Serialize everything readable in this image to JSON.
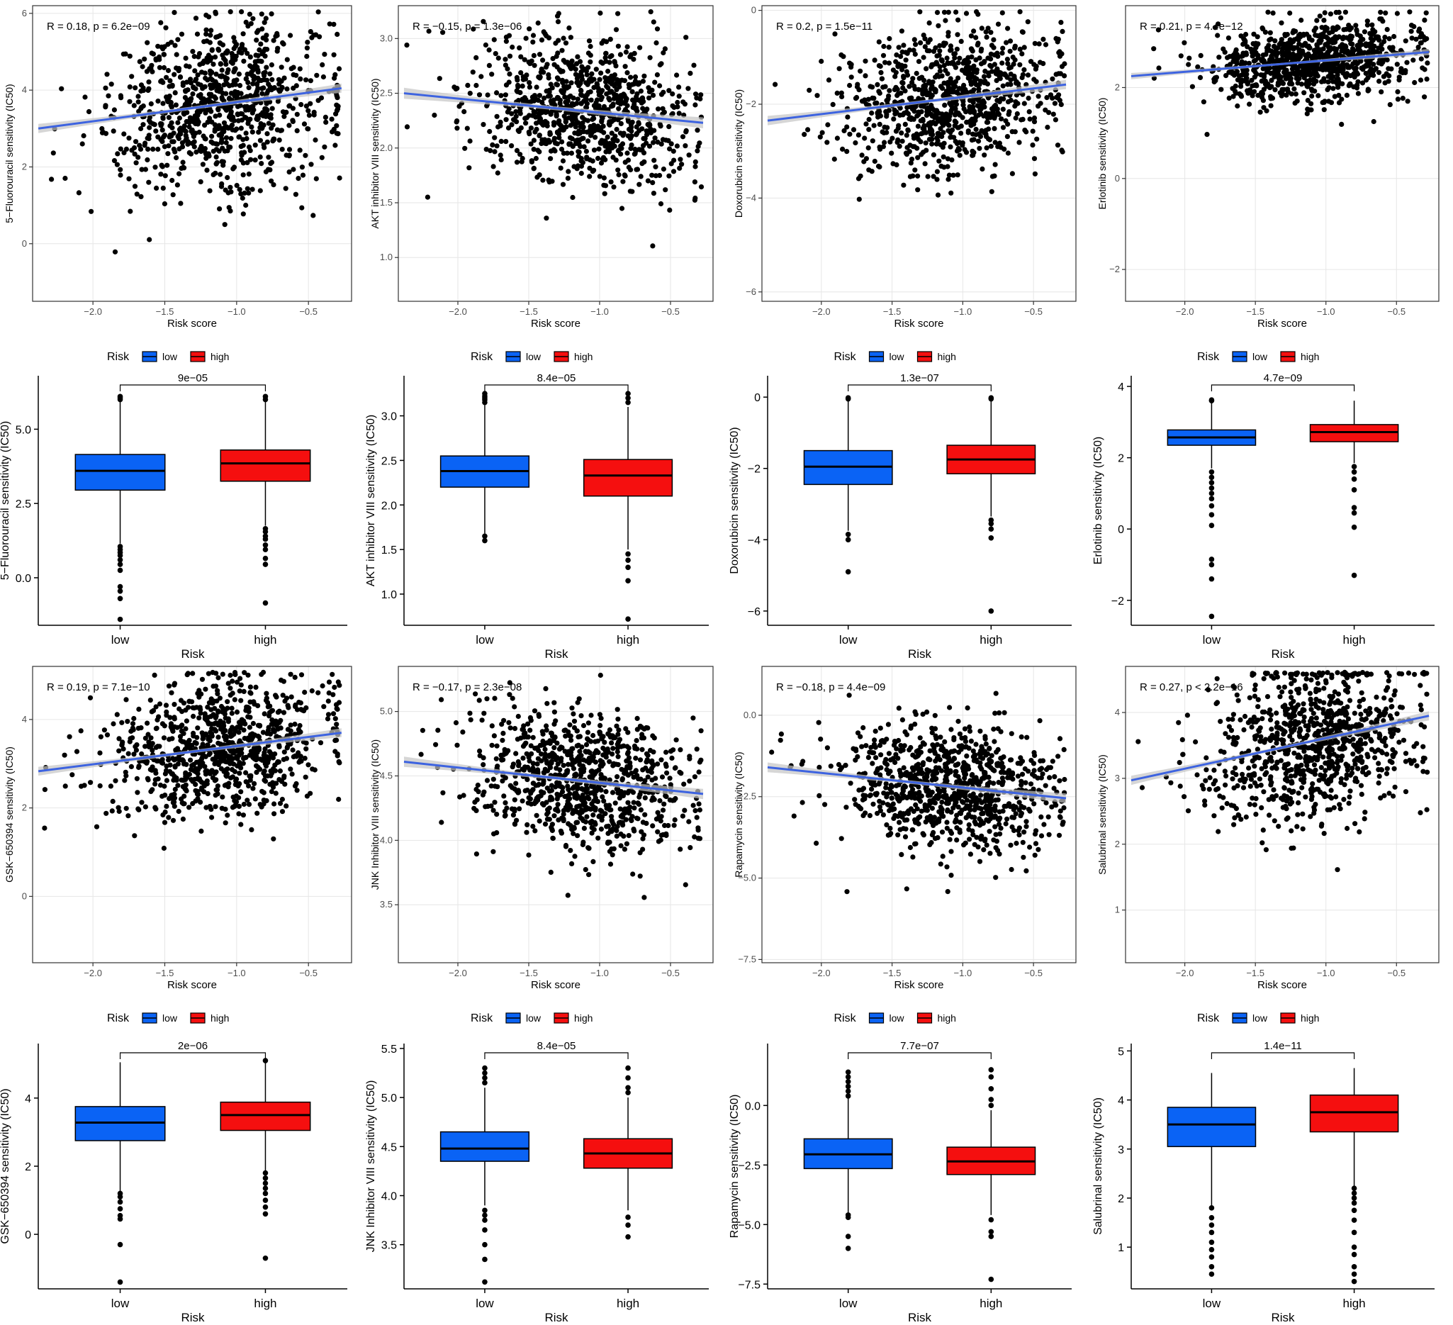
{
  "colors": {
    "low": "#0a63f5",
    "high": "#f50f0f",
    "fit_line": "#3d63e0",
    "ci_band": "#c4c4c4",
    "point": "#000000",
    "grid": "#e6e6e6"
  },
  "legend": {
    "title": "Risk",
    "items": [
      {
        "key": "low",
        "label": "low"
      },
      {
        "key": "high",
        "label": "high"
      }
    ]
  },
  "chart_data": [
    {
      "type": "scatter",
      "panel": "5-FU-scatter",
      "ylabel": "5−Fluorouracil sensitivity (IC50)",
      "xlabel": "Risk score",
      "annotation": "R = 0.18, p = 6.2e−09",
      "xlim": [
        -2.42,
        -0.2
      ],
      "ylim": [
        -1.5,
        6.2
      ],
      "xticks": [
        -2.0,
        -1.5,
        -1.0,
        -0.5
      ],
      "xtick_labels": [
        "−2.0",
        "−1.5",
        "−1.0",
        "−0.5"
      ],
      "yticks": [
        0,
        2,
        4,
        6
      ],
      "ytick_labels": [
        "0",
        "2",
        "4",
        "6"
      ],
      "fit": {
        "x": [
          -2.38,
          -0.27
        ],
        "y": [
          3.0,
          4.05
        ]
      },
      "ci": 0.12,
      "cloud": {
        "center_x": -1.1,
        "center_y": 3.6,
        "sd_y": 1.1,
        "n": 900
      }
    },
    {
      "type": "scatter",
      "panel": "AKT-scatter",
      "ylabel": "AKT inhibitor VIII sensitivity (IC50)",
      "xlabel": "Risk score",
      "annotation": "R = −0.15, p = 1.3e−06",
      "xlim": [
        -2.42,
        -0.2
      ],
      "ylim": [
        0.6,
        3.3
      ],
      "xticks": [
        -2.0,
        -1.5,
        -1.0,
        -0.5
      ],
      "xtick_labels": [
        "−2.0",
        "−1.5",
        "−1.0",
        "−0.5"
      ],
      "yticks": [
        1.0,
        1.5,
        2.0,
        2.5,
        3.0
      ],
      "ytick_labels": [
        "1.0",
        "1.5",
        "2.0",
        "2.5",
        "3.0"
      ],
      "fit": {
        "x": [
          -2.38,
          -0.27
        ],
        "y": [
          2.5,
          2.23
        ]
      },
      "ci": 0.05,
      "cloud": {
        "center_x": -1.1,
        "center_y": 2.37,
        "sd_y": 0.33,
        "n": 900
      }
    },
    {
      "type": "scatter",
      "panel": "Doxorubicin-scatter",
      "ylabel": "Doxorubicin sensitivity (IC50)",
      "xlabel": "Risk score",
      "annotation": "R = 0.2, p = 1.5e−11",
      "xlim": [
        -2.42,
        -0.2
      ],
      "ylim": [
        -6.2,
        0.1
      ],
      "xticks": [
        -2.0,
        -1.5,
        -1.0,
        -0.5
      ],
      "xtick_labels": [
        "−2.0",
        "−1.5",
        "−1.0",
        "−0.5"
      ],
      "yticks": [
        -6,
        -4,
        -2,
        0
      ],
      "ytick_labels": [
        "−6",
        "−4",
        "−2",
        "0"
      ],
      "fit": {
        "x": [
          -2.38,
          -0.27
        ],
        "y": [
          -2.35,
          -1.58
        ]
      },
      "ci": 0.1,
      "cloud": {
        "center_x": -1.1,
        "center_y": -1.9,
        "sd_y": 0.75,
        "n": 900
      }
    },
    {
      "type": "scatter",
      "panel": "Erlotinib-scatter",
      "ylabel": "Erlotinib sensitivity (IC50)",
      "xlabel": "Risk score",
      "annotation": "R = 0.21, p = 4.4e−12",
      "xlim": [
        -2.42,
        -0.2
      ],
      "ylim": [
        -2.7,
        3.8
      ],
      "xticks": [
        -2.0,
        -1.5,
        -1.0,
        -0.5
      ],
      "xtick_labels": [
        "−2.0",
        "−1.5",
        "−1.0",
        "−0.5"
      ],
      "yticks": [
        -2,
        0,
        2
      ],
      "ytick_labels": [
        "−2",
        "0",
        "2"
      ],
      "fit": {
        "x": [
          -2.38,
          -0.27
        ],
        "y": [
          2.25,
          2.78
        ]
      },
      "ci": 0.07,
      "cloud": {
        "center_x": -1.1,
        "center_y": 2.6,
        "sd_y": 0.45,
        "n": 900
      }
    },
    {
      "type": "box",
      "panel": "5-FU-box",
      "ylabel": "5−Fluorouracil sensitivity (IC50)",
      "xlabel": "Risk",
      "categories": [
        "low",
        "high"
      ],
      "pvalue": "9e−05",
      "ylim": [
        -1.6,
        6.8
      ],
      "yticks": [
        0,
        2.5,
        5.0
      ],
      "ytick_labels": [
        "0.0",
        "2.5",
        "5.0"
      ],
      "boxes": [
        {
          "group": "low",
          "q1": 2.95,
          "median": 3.6,
          "q3": 4.15,
          "whisker_low": 1.15,
          "whisker_high": 5.95,
          "outliers": [
            1.05,
            0.95,
            0.85,
            0.75,
            0.6,
            0.45,
            0.25,
            -0.3,
            -0.45,
            -0.7,
            -1.4,
            6.0,
            6.05,
            6.1
          ]
        },
        {
          "group": "high",
          "q1": 3.25,
          "median": 3.85,
          "q3": 4.3,
          "whisker_low": 1.75,
          "whisker_high": 5.95,
          "outliers": [
            1.65,
            1.55,
            1.4,
            1.3,
            1.1,
            0.95,
            0.65,
            0.45,
            -0.85,
            6.0,
            6.1
          ]
        }
      ]
    },
    {
      "type": "box",
      "panel": "AKT-box",
      "ylabel": "AKT inhibitor VIII sensitivity (IC50)",
      "xlabel": "Risk",
      "categories": [
        "low",
        "high"
      ],
      "pvalue": "8.4e−05",
      "ylim": [
        0.65,
        3.45
      ],
      "yticks": [
        1.0,
        1.5,
        2.0,
        2.5,
        3.0
      ],
      "ytick_labels": [
        "1.0",
        "1.5",
        "2.0",
        "2.5",
        "3.0"
      ],
      "boxes": [
        {
          "group": "low",
          "q1": 2.2,
          "median": 2.38,
          "q3": 2.55,
          "whisker_low": 1.68,
          "whisker_high": 3.12,
          "outliers": [
            1.65,
            1.6,
            3.15,
            3.18,
            3.2,
            3.22,
            3.25
          ]
        },
        {
          "group": "high",
          "q1": 2.1,
          "median": 2.33,
          "q3": 2.51,
          "whisker_low": 1.5,
          "whisker_high": 3.1,
          "outliers": [
            1.45,
            1.38,
            1.3,
            1.15,
            0.72,
            3.15,
            3.2,
            3.25
          ]
        }
      ]
    },
    {
      "type": "box",
      "panel": "Doxorubicin-box",
      "ylabel": "Doxorubicin sensitivity (IC50)",
      "xlabel": "Risk",
      "categories": [
        "low",
        "high"
      ],
      "pvalue": "1.3e−07",
      "ylim": [
        -6.4,
        0.6
      ],
      "yticks": [
        -6,
        -4,
        -2,
        0
      ],
      "ytick_labels": [
        "−6",
        "−4",
        "−2",
        "0"
      ],
      "boxes": [
        {
          "group": "low",
          "q1": -2.45,
          "median": -1.95,
          "q3": -1.5,
          "whisker_low": -3.75,
          "whisker_high": -0.1,
          "outliers": [
            -3.85,
            -4.0,
            -4.9,
            -0.05,
            -0.02
          ]
        },
        {
          "group": "high",
          "q1": -2.15,
          "median": -1.75,
          "q3": -1.35,
          "whisker_low": -3.35,
          "whisker_high": -0.1,
          "outliers": [
            -3.45,
            -3.55,
            -3.7,
            -3.95,
            -6.0,
            -0.05,
            -0.02
          ]
        }
      ]
    },
    {
      "type": "box",
      "panel": "Erlotinib-box",
      "ylabel": "Erlotinib sensitivity (IC50)",
      "xlabel": "Risk",
      "categories": [
        "low",
        "high"
      ],
      "pvalue": "4.7e−09",
      "ylim": [
        -2.7,
        4.3
      ],
      "yticks": [
        -2,
        0,
        2,
        4
      ],
      "ytick_labels": [
        "−2",
        "0",
        "2",
        "4"
      ],
      "boxes": [
        {
          "group": "low",
          "q1": 2.35,
          "median": 2.57,
          "q3": 2.78,
          "whisker_low": 1.7,
          "whisker_high": 3.55,
          "outliers": [
            1.6,
            1.45,
            1.3,
            1.15,
            1.0,
            0.85,
            0.65,
            0.4,
            0.1,
            -0.85,
            -1.0,
            -1.4,
            -2.45,
            3.6,
            3.62
          ]
        },
        {
          "group": "high",
          "q1": 2.45,
          "median": 2.72,
          "q3": 2.93,
          "whisker_low": 1.85,
          "whisker_high": 3.6,
          "outliers": [
            1.75,
            1.6,
            1.4,
            1.1,
            0.6,
            0.45,
            0.05,
            -1.3
          ]
        }
      ]
    },
    {
      "type": "scatter",
      "panel": "GSK-scatter",
      "ylabel": "GSK−650394 sensitivity (IC50)",
      "xlabel": "Risk score",
      "annotation": "R = 0.19, p = 7.1e−10",
      "xlim": [
        -2.42,
        -0.2
      ],
      "ylim": [
        -1.5,
        5.2
      ],
      "xticks": [
        -2.0,
        -1.5,
        -1.0,
        -0.5
      ],
      "xtick_labels": [
        "−2.0",
        "−1.5",
        "−1.0",
        "−0.5"
      ],
      "yticks": [
        0,
        2,
        4
      ],
      "ytick_labels": [
        "0",
        "2",
        "4"
      ],
      "fit": {
        "x": [
          -2.38,
          -0.27
        ],
        "y": [
          2.83,
          3.7
        ]
      },
      "ci": 0.1,
      "cloud": {
        "center_x": -1.1,
        "center_y": 3.3,
        "sd_y": 0.75,
        "n": 900
      }
    },
    {
      "type": "scatter",
      "panel": "JNK-scatter",
      "ylabel": "JNK Inhibitor VIII sensitivity (IC50)",
      "xlabel": "Risk score",
      "annotation": "R = −0.17, p = 2.3e−08",
      "xlim": [
        -2.42,
        -0.2
      ],
      "ylim": [
        3.05,
        5.35
      ],
      "xticks": [
        -2.0,
        -1.5,
        -1.0,
        -0.5
      ],
      "xtick_labels": [
        "−2.0",
        "−1.5",
        "−1.0",
        "−0.5"
      ],
      "yticks": [
        3.5,
        4.0,
        4.5,
        5.0
      ],
      "ytick_labels": [
        "3.5",
        "4.0",
        "4.5",
        "5.0"
      ],
      "fit": {
        "x": [
          -2.38,
          -0.27
        ],
        "y": [
          4.61,
          4.36
        ]
      },
      "ci": 0.04,
      "cloud": {
        "center_x": -1.1,
        "center_y": 4.45,
        "sd_y": 0.27,
        "n": 900
      }
    },
    {
      "type": "scatter",
      "panel": "Rapamycin-scatter",
      "ylabel": "Rapamycin sensitivity (IC50)",
      "xlabel": "Risk score",
      "annotation": "R = −0.18, p = 4.4e−09",
      "xlim": [
        -2.42,
        -0.2
      ],
      "ylim": [
        -7.6,
        1.5
      ],
      "xticks": [
        -2.0,
        -1.5,
        -1.0,
        -0.5
      ],
      "xtick_labels": [
        "−2.0",
        "−1.5",
        "−1.0",
        "−0.5"
      ],
      "yticks": [
        -7.5,
        -5.0,
        -2.5,
        0.0
      ],
      "ytick_labels": [
        "−7.5",
        "−5.0",
        "−2.5",
        "0.0"
      ],
      "fit": {
        "x": [
          -2.38,
          -0.27
        ],
        "y": [
          -1.6,
          -2.55
        ]
      },
      "ci": 0.15,
      "cloud": {
        "center_x": -1.1,
        "center_y": -2.1,
        "sd_y": 1.0,
        "n": 900
      }
    },
    {
      "type": "scatter",
      "panel": "Salubrinal-scatter",
      "ylabel": "Salubrinal sensitivity (IC50)",
      "xlabel": "Risk score",
      "annotation": "R = 0.27, p < 2.2e−16",
      "xlim": [
        -2.42,
        -0.2
      ],
      "ylim": [
        0.2,
        4.7
      ],
      "xticks": [
        -2.0,
        -1.5,
        -1.0,
        -0.5
      ],
      "xtick_labels": [
        "−2.0",
        "−1.5",
        "−1.0",
        "−0.5"
      ],
      "yticks": [
        1,
        2,
        3,
        4
      ],
      "ytick_labels": [
        "1",
        "2",
        "3",
        "4"
      ],
      "fit": {
        "x": [
          -2.38,
          -0.27
        ],
        "y": [
          2.97,
          3.95
        ]
      },
      "ci": 0.07,
      "cloud": {
        "center_x": -1.1,
        "center_y": 3.5,
        "sd_y": 0.6,
        "n": 900
      }
    },
    {
      "type": "box",
      "panel": "GSK-box",
      "ylabel": "GSK−650394 sensitivity (IC50)",
      "xlabel": "Risk",
      "categories": [
        "low",
        "high"
      ],
      "pvalue": "2e−06",
      "ylim": [
        -1.6,
        5.6
      ],
      "yticks": [
        0,
        2,
        4
      ],
      "ytick_labels": [
        "0",
        "2",
        "4"
      ],
      "boxes": [
        {
          "group": "low",
          "q1": 2.75,
          "median": 3.28,
          "q3": 3.75,
          "whisker_low": 1.25,
          "whisker_high": 5.05,
          "outliers": [
            1.2,
            1.1,
            0.95,
            0.75,
            0.55,
            0.45,
            -0.3,
            -1.4
          ]
        },
        {
          "group": "high",
          "q1": 3.05,
          "median": 3.5,
          "q3": 3.88,
          "whisker_low": 1.85,
          "whisker_high": 5.05,
          "outliers": [
            1.8,
            1.65,
            1.5,
            1.35,
            1.2,
            1.0,
            0.8,
            0.6,
            -0.7,
            5.1
          ]
        }
      ]
    },
    {
      "type": "box",
      "panel": "JNK-box",
      "ylabel": "JNK Inhibitor VIII sensitivity (IC50)",
      "xlabel": "Risk",
      "categories": [
        "low",
        "high"
      ],
      "pvalue": "8.4e−05",
      "ylim": [
        3.05,
        5.55
      ],
      "yticks": [
        3.5,
        4.0,
        4.5,
        5.0,
        5.5
      ],
      "ytick_labels": [
        "3.5",
        "4.0",
        "4.5",
        "5.0",
        "5.5"
      ],
      "boxes": [
        {
          "group": "low",
          "q1": 4.35,
          "median": 4.48,
          "q3": 4.65,
          "whisker_low": 3.9,
          "whisker_high": 5.1,
          "outliers": [
            3.85,
            3.8,
            3.75,
            3.65,
            3.5,
            3.35,
            3.12,
            5.15,
            5.2,
            5.25,
            5.3
          ]
        },
        {
          "group": "high",
          "q1": 4.28,
          "median": 4.43,
          "q3": 4.58,
          "whisker_low": 3.85,
          "whisker_high": 5.0,
          "outliers": [
            3.78,
            3.7,
            3.58,
            5.05,
            5.1,
            5.2,
            5.3
          ]
        }
      ]
    },
    {
      "type": "box",
      "panel": "Rapamycin-box",
      "ylabel": "Rapamycin sensitivity (IC50)",
      "xlabel": "Risk",
      "categories": [
        "low",
        "high"
      ],
      "pvalue": "7.7e−07",
      "ylim": [
        -7.7,
        2.6
      ],
      "yticks": [
        -7.5,
        -5.0,
        -2.5,
        0.0
      ],
      "ytick_labels": [
        "−7.5",
        "−5.0",
        "−2.5",
        "0.0"
      ],
      "boxes": [
        {
          "group": "low",
          "q1": -2.65,
          "median": -2.05,
          "q3": -1.4,
          "whisker_low": -4.5,
          "whisker_high": 0.35,
          "outliers": [
            -4.6,
            -4.7,
            -5.5,
            -6.0,
            0.4,
            0.6,
            0.8,
            1.0,
            1.2,
            1.4
          ]
        },
        {
          "group": "high",
          "q1": -2.9,
          "median": -2.35,
          "q3": -1.75,
          "whisker_low": -4.6,
          "whisker_high": -0.2,
          "outliers": [
            -4.8,
            -5.3,
            -5.5,
            -7.3,
            0.0,
            0.25,
            0.7,
            1.2,
            1.5
          ]
        }
      ]
    },
    {
      "type": "box",
      "panel": "Salubrinal-box",
      "ylabel": "Salubrinal sensitivity (IC50)",
      "xlabel": "Risk",
      "categories": [
        "low",
        "high"
      ],
      "pvalue": "1.4e−11",
      "ylim": [
        0.15,
        5.15
      ],
      "yticks": [
        1,
        2,
        3,
        4,
        5
      ],
      "ytick_labels": [
        "1",
        "2",
        "3",
        "4",
        "5"
      ],
      "boxes": [
        {
          "group": "low",
          "q1": 3.05,
          "median": 3.5,
          "q3": 3.85,
          "whisker_low": 1.85,
          "whisker_high": 4.55,
          "outliers": [
            1.8,
            1.6,
            1.45,
            1.3,
            1.1,
            0.95,
            0.8,
            0.6,
            0.45
          ]
        },
        {
          "group": "high",
          "q1": 3.35,
          "median": 3.75,
          "q3": 4.1,
          "whisker_low": 2.25,
          "whisker_high": 4.65,
          "outliers": [
            2.2,
            2.1,
            2.0,
            1.9,
            1.75,
            1.55,
            1.3,
            1.0,
            0.85,
            0.6,
            0.45,
            0.3
          ]
        }
      ]
    }
  ]
}
